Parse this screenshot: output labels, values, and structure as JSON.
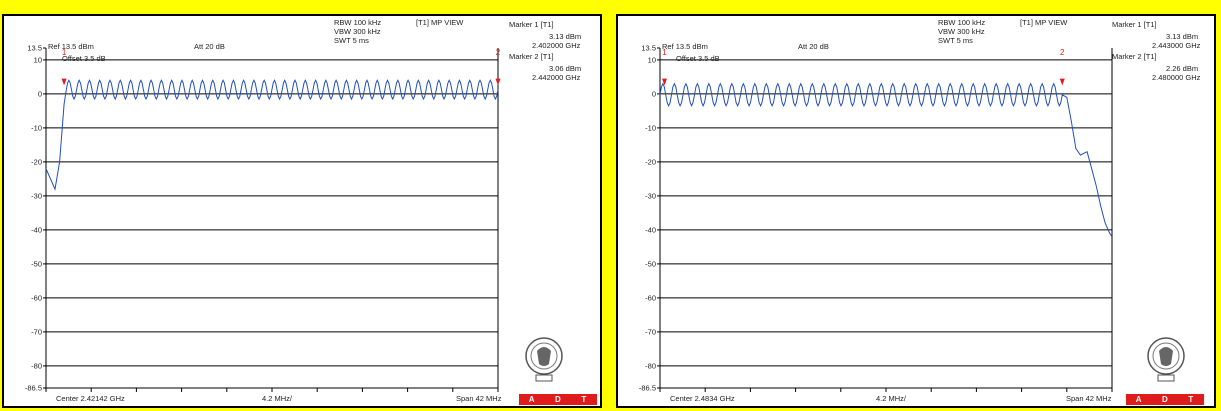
{
  "colors": {
    "frame": "#FFFF00",
    "trace": "#1f4fbf",
    "marker": "#e01b1b",
    "adt": "#e01b1b"
  },
  "panels": [
    {
      "settings": {
        "rbw": "RBW 100 kHz",
        "vbw": "VBW 300 kHz",
        "swt": "SWT 5 ms",
        "view": "[T1] MP VIEW"
      },
      "ref": "Ref 13.5 dBm",
      "att": "Att  20 dB",
      "offset": "Offset 3.5 dB",
      "markers": {
        "m1_label": "Marker 1 [T1]",
        "m1_level": "3.13 dBm",
        "m1_freq": "2.402000 GHz",
        "m2_label": "Marker 2 [T1]",
        "m2_level": "3.06 dBm",
        "m2_freq": "2.442000 GHz"
      },
      "footer": {
        "center": "Center 2.42142 GHz",
        "div": "4.2 MHz/",
        "span": "Span 42 MHz"
      },
      "adt": [
        "A",
        "D",
        "T"
      ]
    },
    {
      "settings": {
        "rbw": "RBW 100 kHz",
        "vbw": "VBW 300 kHz",
        "swt": "SWT 5 ms",
        "view": "[T1] MP VIEW"
      },
      "ref": "Ref 13.5 dBm",
      "att": "Att  20 dB",
      "offset": "Offset 3.5 dB",
      "markers": {
        "m1_label": "Marker 1 [T1]",
        "m1_level": "3.13 dBm",
        "m1_freq": "2.443000 GHz",
        "m2_label": "Marker 2 [T1]",
        "m2_level": "2.26 dBm",
        "m2_freq": "2.480000 GHz"
      },
      "footer": {
        "center": "Center 2.4834 GHz",
        "div": "4.2 MHz/",
        "span": "Span 42 MHz"
      },
      "adt": [
        "A",
        "D",
        "T"
      ]
    }
  ],
  "chart_data": [
    {
      "type": "line",
      "ylim": [
        -86.5,
        13.5
      ],
      "xlim": [
        0,
        10
      ],
      "y_ticks": [
        "13.5",
        "10",
        "0",
        "-10",
        "-20",
        "-30",
        "-40",
        "-50",
        "-60",
        "-70",
        "-80",
        "-86.5"
      ],
      "y_tick_values": [
        13.5,
        10,
        0,
        -10,
        -20,
        -30,
        -40,
        -50,
        -60,
        -70,
        -80,
        -86.5
      ],
      "marker_labels": [
        "1",
        "2"
      ],
      "marker_x": [
        0.4,
        10.0
      ],
      "series": [
        {
          "points": [
            [
              0,
              -22
            ],
            [
              0.1,
              -25
            ],
            [
              0.2,
              -28
            ],
            [
              0.3,
              -20
            ],
            [
              0.4,
              -3
            ],
            [
              0.45,
              3.1
            ],
            [
              10,
              3.06
            ]
          ],
          "ripple": {
            "from": 0.45,
            "to": 10,
            "cycles": 42,
            "min": -1.5,
            "max": 4
          }
        }
      ]
    },
    {
      "type": "line",
      "ylim": [
        -86.5,
        13.5
      ],
      "xlim": [
        0,
        10
      ],
      "y_ticks": [
        "13.5",
        "10",
        "0",
        "-10",
        "-20",
        "-30",
        "-40",
        "-50",
        "-60",
        "-70",
        "-80",
        "-86.5"
      ],
      "y_tick_values": [
        13.5,
        10,
        0,
        -10,
        -20,
        -30,
        -40,
        -50,
        -60,
        -70,
        -80,
        -86.5
      ],
      "marker_labels": [
        "1",
        "2"
      ],
      "marker_x": [
        0.1,
        8.9
      ],
      "series": [
        {
          "points": [
            [
              0,
              2.5
            ],
            [
              8.9,
              2.26
            ],
            [
              9.0,
              -1
            ],
            [
              9.1,
              -8
            ],
            [
              9.2,
              -16
            ],
            [
              9.3,
              -18
            ],
            [
              9.45,
              -17
            ],
            [
              9.55,
              -22
            ],
            [
              9.65,
              -27
            ],
            [
              9.75,
              -33
            ],
            [
              9.85,
              -38
            ],
            [
              9.95,
              -41
            ],
            [
              10,
              -42
            ]
          ],
          "ripple": {
            "from": 0.0,
            "to": 8.9,
            "cycles": 35,
            "min": -3.5,
            "max": 3
          }
        }
      ]
    }
  ]
}
